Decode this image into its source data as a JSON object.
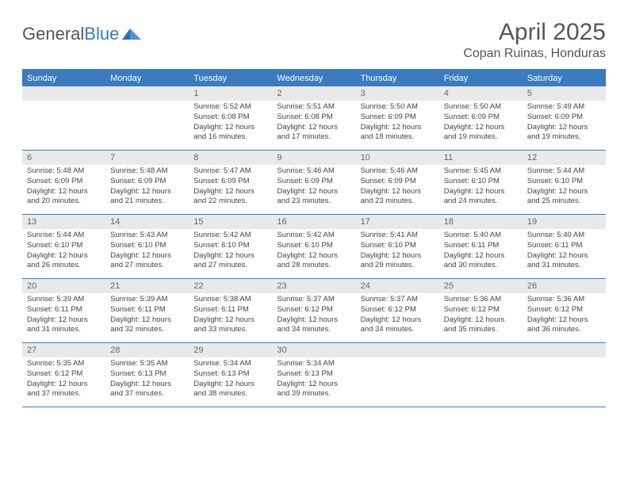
{
  "brand": {
    "part1": "General",
    "part2": "Blue"
  },
  "title": "April 2025",
  "location": "Copan Ruinas, Honduras",
  "colors": {
    "accent": "#3b7bbf",
    "header_bg": "#e9e9e9",
    "text": "#444444",
    "title_text": "#555555",
    "background": "#ffffff"
  },
  "weekdays": [
    "Sunday",
    "Monday",
    "Tuesday",
    "Wednesday",
    "Thursday",
    "Friday",
    "Saturday"
  ],
  "weeks": [
    [
      {
        "n": "",
        "lines": [
          "",
          "",
          "",
          ""
        ]
      },
      {
        "n": "",
        "lines": [
          "",
          "",
          "",
          ""
        ]
      },
      {
        "n": "1",
        "lines": [
          "Sunrise: 5:52 AM",
          "Sunset: 6:08 PM",
          "Daylight: 12 hours",
          "and 16 minutes."
        ]
      },
      {
        "n": "2",
        "lines": [
          "Sunrise: 5:51 AM",
          "Sunset: 6:08 PM",
          "Daylight: 12 hours",
          "and 17 minutes."
        ]
      },
      {
        "n": "3",
        "lines": [
          "Sunrise: 5:50 AM",
          "Sunset: 6:09 PM",
          "Daylight: 12 hours",
          "and 18 minutes."
        ]
      },
      {
        "n": "4",
        "lines": [
          "Sunrise: 5:50 AM",
          "Sunset: 6:09 PM",
          "Daylight: 12 hours",
          "and 19 minutes."
        ]
      },
      {
        "n": "5",
        "lines": [
          "Sunrise: 5:49 AM",
          "Sunset: 6:09 PM",
          "Daylight: 12 hours",
          "and 19 minutes."
        ]
      }
    ],
    [
      {
        "n": "6",
        "lines": [
          "Sunrise: 5:48 AM",
          "Sunset: 6:09 PM",
          "Daylight: 12 hours",
          "and 20 minutes."
        ]
      },
      {
        "n": "7",
        "lines": [
          "Sunrise: 5:48 AM",
          "Sunset: 6:09 PM",
          "Daylight: 12 hours",
          "and 21 minutes."
        ]
      },
      {
        "n": "8",
        "lines": [
          "Sunrise: 5:47 AM",
          "Sunset: 6:09 PM",
          "Daylight: 12 hours",
          "and 22 minutes."
        ]
      },
      {
        "n": "9",
        "lines": [
          "Sunrise: 5:46 AM",
          "Sunset: 6:09 PM",
          "Daylight: 12 hours",
          "and 23 minutes."
        ]
      },
      {
        "n": "10",
        "lines": [
          "Sunrise: 5:46 AM",
          "Sunset: 6:09 PM",
          "Daylight: 12 hours",
          "and 23 minutes."
        ]
      },
      {
        "n": "11",
        "lines": [
          "Sunrise: 5:45 AM",
          "Sunset: 6:10 PM",
          "Daylight: 12 hours",
          "and 24 minutes."
        ]
      },
      {
        "n": "12",
        "lines": [
          "Sunrise: 5:44 AM",
          "Sunset: 6:10 PM",
          "Daylight: 12 hours",
          "and 25 minutes."
        ]
      }
    ],
    [
      {
        "n": "13",
        "lines": [
          "Sunrise: 5:44 AM",
          "Sunset: 6:10 PM",
          "Daylight: 12 hours",
          "and 26 minutes."
        ]
      },
      {
        "n": "14",
        "lines": [
          "Sunrise: 5:43 AM",
          "Sunset: 6:10 PM",
          "Daylight: 12 hours",
          "and 27 minutes."
        ]
      },
      {
        "n": "15",
        "lines": [
          "Sunrise: 5:42 AM",
          "Sunset: 6:10 PM",
          "Daylight: 12 hours",
          "and 27 minutes."
        ]
      },
      {
        "n": "16",
        "lines": [
          "Sunrise: 5:42 AM",
          "Sunset: 6:10 PM",
          "Daylight: 12 hours",
          "and 28 minutes."
        ]
      },
      {
        "n": "17",
        "lines": [
          "Sunrise: 5:41 AM",
          "Sunset: 6:10 PM",
          "Daylight: 12 hours",
          "and 29 minutes."
        ]
      },
      {
        "n": "18",
        "lines": [
          "Sunrise: 5:40 AM",
          "Sunset: 6:11 PM",
          "Daylight: 12 hours",
          "and 30 minutes."
        ]
      },
      {
        "n": "19",
        "lines": [
          "Sunrise: 5:40 AM",
          "Sunset: 6:11 PM",
          "Daylight: 12 hours",
          "and 31 minutes."
        ]
      }
    ],
    [
      {
        "n": "20",
        "lines": [
          "Sunrise: 5:39 AM",
          "Sunset: 6:11 PM",
          "Daylight: 12 hours",
          "and 31 minutes."
        ]
      },
      {
        "n": "21",
        "lines": [
          "Sunrise: 5:39 AM",
          "Sunset: 6:11 PM",
          "Daylight: 12 hours",
          "and 32 minutes."
        ]
      },
      {
        "n": "22",
        "lines": [
          "Sunrise: 5:38 AM",
          "Sunset: 6:11 PM",
          "Daylight: 12 hours",
          "and 33 minutes."
        ]
      },
      {
        "n": "23",
        "lines": [
          "Sunrise: 5:37 AM",
          "Sunset: 6:12 PM",
          "Daylight: 12 hours",
          "and 34 minutes."
        ]
      },
      {
        "n": "24",
        "lines": [
          "Sunrise: 5:37 AM",
          "Sunset: 6:12 PM",
          "Daylight: 12 hours",
          "and 34 minutes."
        ]
      },
      {
        "n": "25",
        "lines": [
          "Sunrise: 5:36 AM",
          "Sunset: 6:12 PM",
          "Daylight: 12 hours",
          "and 35 minutes."
        ]
      },
      {
        "n": "26",
        "lines": [
          "Sunrise: 5:36 AM",
          "Sunset: 6:12 PM",
          "Daylight: 12 hours",
          "and 36 minutes."
        ]
      }
    ],
    [
      {
        "n": "27",
        "lines": [
          "Sunrise: 5:35 AM",
          "Sunset: 6:12 PM",
          "Daylight: 12 hours",
          "and 37 minutes."
        ]
      },
      {
        "n": "28",
        "lines": [
          "Sunrise: 5:35 AM",
          "Sunset: 6:13 PM",
          "Daylight: 12 hours",
          "and 37 minutes."
        ]
      },
      {
        "n": "29",
        "lines": [
          "Sunrise: 5:34 AM",
          "Sunset: 6:13 PM",
          "Daylight: 12 hours",
          "and 38 minutes."
        ]
      },
      {
        "n": "30",
        "lines": [
          "Sunrise: 5:34 AM",
          "Sunset: 6:13 PM",
          "Daylight: 12 hours",
          "and 39 minutes."
        ]
      },
      {
        "n": "",
        "lines": [
          "",
          "",
          "",
          ""
        ]
      },
      {
        "n": "",
        "lines": [
          "",
          "",
          "",
          ""
        ]
      },
      {
        "n": "",
        "lines": [
          "",
          "",
          "",
          ""
        ]
      }
    ]
  ]
}
